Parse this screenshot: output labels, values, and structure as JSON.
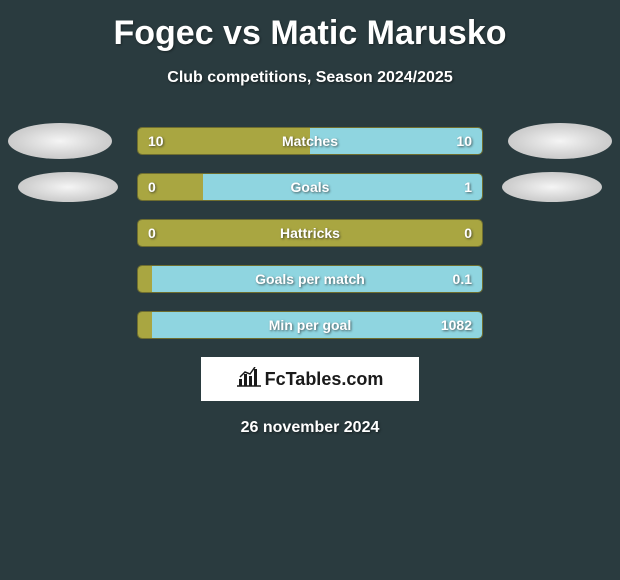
{
  "header": {
    "title": "Fogec vs Matic Marusko",
    "subtitle": "Club competitions, Season 2024/2025"
  },
  "stats": [
    {
      "label": "Matches",
      "left_value": "10",
      "right_value": "10",
      "left_pct": 50,
      "right_pct": 50,
      "left_color": "#a9a641",
      "right_color": "#8fd5e0",
      "show_avatars": true,
      "avatar_variant": 1
    },
    {
      "label": "Goals",
      "left_value": "0",
      "right_value": "1",
      "left_pct": 19,
      "right_pct": 81,
      "left_color": "#a9a641",
      "right_color": "#8fd5e0",
      "show_avatars": true,
      "avatar_variant": 2
    },
    {
      "label": "Hattricks",
      "left_value": "0",
      "right_value": "0",
      "left_pct": 100,
      "right_pct": 0,
      "left_color": "#a9a641",
      "right_color": "#8fd5e0",
      "show_avatars": false
    },
    {
      "label": "Goals per match",
      "left_value": "",
      "right_value": "0.1",
      "left_pct": 4,
      "right_pct": 96,
      "left_color": "#a9a641",
      "right_color": "#8fd5e0",
      "show_avatars": false
    },
    {
      "label": "Min per goal",
      "left_value": "",
      "right_value": "1082",
      "left_pct": 4,
      "right_pct": 96,
      "left_color": "#a9a641",
      "right_color": "#8fd5e0",
      "show_avatars": false
    }
  ],
  "footer": {
    "brand_icon": "bar-chart",
    "brand_text": "FcTables.com",
    "date": "26 november 2024"
  },
  "style": {
    "background_color": "#2a3b3f",
    "bar_border_color": "#6f6e2f",
    "title_fontsize": 34,
    "subtitle_fontsize": 16,
    "stat_label_fontsize": 14,
    "avatar_bg": "#e0e0e0"
  }
}
